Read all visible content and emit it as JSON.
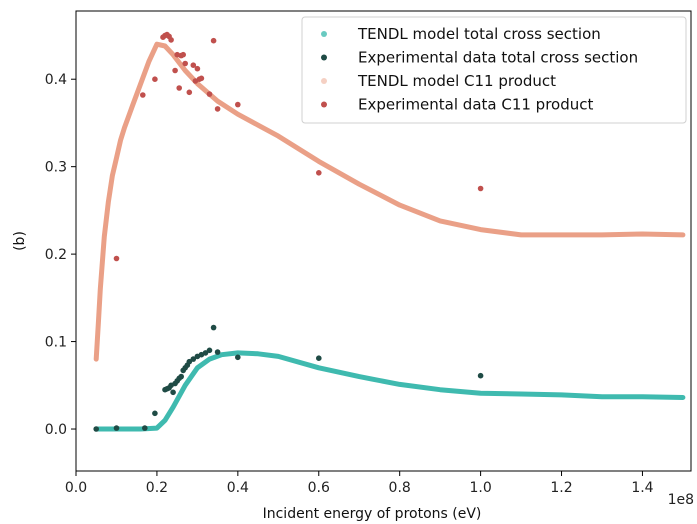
{
  "chart_data": {
    "type": "line",
    "title": "",
    "xlabel": "Incident energy of protons (eV)",
    "ylabel": "(b)",
    "x_offset_label": "1e8",
    "xlim": [
      0,
      152000000
    ],
    "ylim": [
      -0.048,
      0.478
    ],
    "x_ticks": [
      0,
      20000000,
      40000000,
      60000000,
      80000000,
      100000000,
      120000000,
      140000000
    ],
    "x_tick_labels": [
      "0.0",
      "0.2",
      "0.4",
      "0.6",
      "0.8",
      "1.0",
      "1.2",
      "1.4"
    ],
    "y_ticks": [
      0.0,
      0.1,
      0.2,
      0.3,
      0.4
    ],
    "y_tick_labels": [
      "0.0",
      "0.1",
      "0.2",
      "0.3",
      "0.4"
    ],
    "grid": false,
    "legend_position": "top-right",
    "series": [
      {
        "name": "TENDL model total cross section",
        "kind": "line",
        "color": "#2ab3a6",
        "x": [
          5000000,
          8000000,
          12000000,
          16000000,
          20000000,
          22000000,
          24000000,
          27000000,
          30000000,
          33000000,
          36000000,
          40000000,
          45000000,
          50000000,
          60000000,
          70000000,
          80000000,
          90000000,
          100000000,
          110000000,
          120000000,
          130000000,
          140000000,
          150000000
        ],
        "y": [
          0.0,
          0.0,
          0.0,
          0.0,
          0.001,
          0.01,
          0.025,
          0.05,
          0.07,
          0.08,
          0.085,
          0.087,
          0.086,
          0.083,
          0.07,
          0.06,
          0.051,
          0.045,
          0.041,
          0.04,
          0.039,
          0.037,
          0.037,
          0.036
        ]
      },
      {
        "name": "Experimental data total cross section",
        "kind": "scatter",
        "color": "#1f4b45",
        "x": [
          5000000,
          10000000,
          17000000,
          19500000,
          22000000,
          22500000,
          23000000,
          23500000,
          24000000,
          24500000,
          25000000,
          25500000,
          26000000,
          26500000,
          27000000,
          27500000,
          28000000,
          29000000,
          30000000,
          31000000,
          32000000,
          33000000,
          34000000,
          35000000,
          40000000,
          60000000,
          100000000
        ],
        "y": [
          0.0,
          0.001,
          0.001,
          0.018,
          0.045,
          0.046,
          0.047,
          0.05,
          0.042,
          0.052,
          0.055,
          0.058,
          0.06,
          0.067,
          0.07,
          0.073,
          0.077,
          0.08,
          0.083,
          0.085,
          0.087,
          0.09,
          0.116,
          0.088,
          0.082,
          0.081,
          0.061
        ]
      },
      {
        "name": "TENDL model C11 product",
        "kind": "line",
        "color": "#e8967a",
        "x": [
          5000000,
          5500000,
          6000000,
          7000000,
          8000000,
          9000000,
          10000000,
          11000000,
          12000000,
          14000000,
          16000000,
          18000000,
          20000000,
          22000000,
          24000000,
          27000000,
          30000000,
          35000000,
          40000000,
          50000000,
          60000000,
          70000000,
          80000000,
          90000000,
          100000000,
          110000000,
          120000000,
          130000000,
          140000000,
          150000000
        ],
        "y": [
          0.08,
          0.12,
          0.16,
          0.22,
          0.26,
          0.29,
          0.31,
          0.33,
          0.345,
          0.37,
          0.395,
          0.42,
          0.44,
          0.438,
          0.428,
          0.41,
          0.395,
          0.375,
          0.36,
          0.335,
          0.306,
          0.28,
          0.256,
          0.238,
          0.228,
          0.222,
          0.222,
          0.222,
          0.223,
          0.222
        ]
      },
      {
        "name": "Experimental data C11 product",
        "kind": "scatter",
        "color": "#c0504d",
        "x": [
          10000000,
          16500000,
          19500000,
          21500000,
          22000000,
          22500000,
          23000000,
          23500000,
          24500000,
          25000000,
          25500000,
          26000000,
          26500000,
          27000000,
          28000000,
          29000000,
          29500000,
          30000000,
          30500000,
          31000000,
          33000000,
          34000000,
          35000000,
          40000000,
          60000000,
          100000000
        ],
        "y": [
          0.195,
          0.382,
          0.4,
          0.448,
          0.45,
          0.451,
          0.449,
          0.445,
          0.41,
          0.428,
          0.39,
          0.427,
          0.428,
          0.418,
          0.385,
          0.416,
          0.398,
          0.412,
          0.4,
          0.401,
          0.383,
          0.444,
          0.366,
          0.371,
          0.293,
          0.275
        ]
      }
    ]
  }
}
